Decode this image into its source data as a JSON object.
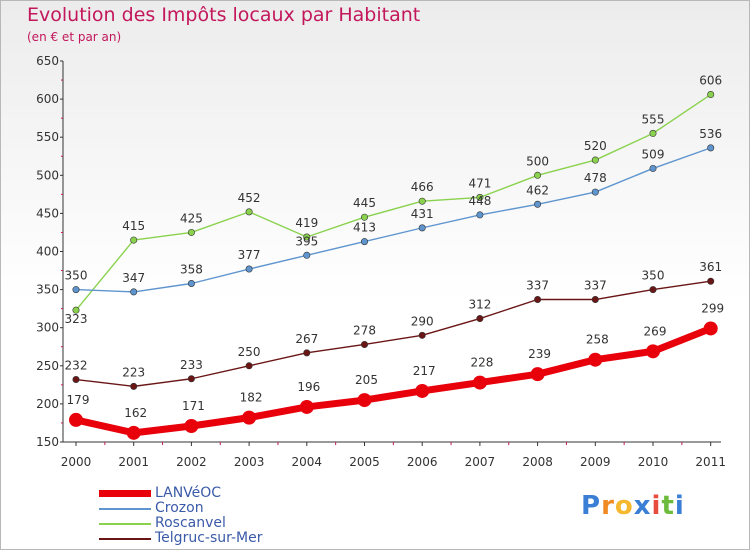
{
  "header": {
    "title": "Evolution des Impôts locaux par Habitant",
    "subtitle": "(en € et par an)"
  },
  "logo": {
    "letters": [
      "P",
      "r",
      "o",
      "x",
      "i",
      "t",
      "i"
    ],
    "colors": [
      "#3a7fd5",
      "#f08a24",
      "#f5b82e",
      "#3a7fd5",
      "#e84c3d",
      "#6cbb3c",
      "#3a7fd5"
    ]
  },
  "chart_data": {
    "type": "line",
    "x": [
      "2000",
      "2001",
      "2002",
      "2003",
      "2004",
      "2005",
      "2006",
      "2007",
      "2008",
      "2009",
      "2010",
      "2011"
    ],
    "ylim": [
      150,
      650
    ],
    "yticks": [
      150,
      200,
      250,
      300,
      350,
      400,
      450,
      500,
      550,
      600,
      650
    ],
    "grid": false,
    "legend_position": "bottom-left",
    "series": [
      {
        "name": "LANVéOC",
        "color": "#e8000b",
        "values": [
          179,
          162,
          171,
          182,
          196,
          205,
          217,
          228,
          239,
          258,
          269,
          299
        ]
      },
      {
        "name": "Crozon",
        "color": "#5f95cf",
        "values": [
          350,
          347,
          358,
          377,
          395,
          413,
          431,
          448,
          462,
          478,
          509,
          536
        ]
      },
      {
        "name": "Roscanvel",
        "color": "#8ad24e",
        "values": [
          323,
          415,
          425,
          452,
          419,
          445,
          466,
          471,
          500,
          520,
          555,
          606
        ]
      },
      {
        "name": "Telgruc-sur-Mer",
        "color": "#6b1616",
        "values": [
          232,
          223,
          233,
          250,
          267,
          278,
          290,
          312,
          337,
          337,
          350,
          361
        ]
      }
    ]
  }
}
